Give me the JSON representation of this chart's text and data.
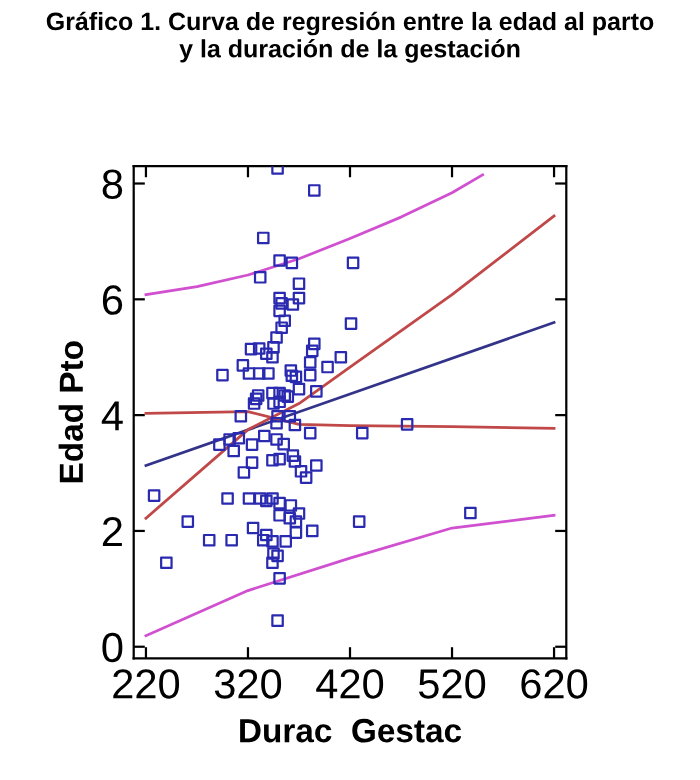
{
  "chart_data": {
    "type": "scatter",
    "title": "Gráfico 1. Curva de regresión entre la edad al parto\ny la duración de la gestación",
    "xlabel": "Durac  Gestac",
    "ylabel": "Edad Pto",
    "xlim": [
      208,
      632
    ],
    "ylim": [
      -0.2,
      8.3
    ],
    "xticks": [
      220,
      320,
      420,
      520,
      620
    ],
    "yticks": [
      0,
      2,
      4,
      6,
      8
    ],
    "grid": false,
    "legend": false,
    "series": [
      {
        "marker": "square",
        "color": "#2a2ab0",
        "x": [
          349,
          385,
          335,
          351,
          363,
          423,
          332,
          370,
          351,
          353,
          364,
          370,
          351,
          356,
          353,
          421,
          348,
          345,
          323,
          331,
          338,
          344,
          385,
          383,
          411,
          381,
          315,
          398,
          295,
          321,
          331,
          340,
          362,
          363,
          381,
          367,
          387,
          370,
          330,
          328,
          344,
          351,
          356,
          345,
          351,
          359,
          326,
          313,
          349,
          361,
          348,
          366,
          381,
          432,
          476,
          292,
          302,
          311,
          306,
          324,
          336,
          348,
          355,
          324,
          344,
          351,
          364,
          366,
          316,
          372,
          387,
          377,
          228,
          300,
          321,
          332,
          338,
          344,
          351,
          362,
          351,
          370,
          367,
          361,
          261,
          429,
          538,
          282,
          304,
          325,
          338,
          344,
          357,
          367,
          383,
          335,
          345,
          349,
          344,
          240,
          351,
          349
        ],
        "values": [
          8.26,
          7.88,
          7.06,
          6.67,
          6.63,
          6.63,
          6.38,
          6.27,
          6.02,
          5.93,
          5.91,
          6.02,
          5.8,
          5.63,
          5.51,
          5.58,
          5.34,
          5.17,
          5.14,
          5.15,
          5.06,
          5.0,
          5.23,
          5.11,
          5.0,
          4.91,
          4.86,
          4.83,
          4.69,
          4.72,
          4.72,
          4.72,
          4.77,
          4.68,
          4.69,
          4.66,
          4.41,
          4.45,
          4.34,
          4.28,
          4.38,
          4.38,
          4.34,
          4.2,
          4.23,
          4.32,
          4.2,
          3.98,
          3.98,
          3.98,
          3.86,
          3.83,
          3.69,
          3.69,
          3.84,
          3.49,
          3.58,
          3.6,
          3.38,
          3.49,
          3.64,
          3.58,
          3.5,
          3.18,
          3.22,
          3.24,
          3.3,
          3.2,
          3.01,
          3.03,
          3.13,
          2.92,
          2.61,
          2.56,
          2.56,
          2.56,
          2.52,
          2.56,
          2.48,
          2.44,
          2.27,
          2.3,
          2.16,
          2.22,
          2.16,
          2.16,
          2.31,
          1.84,
          1.84,
          2.05,
          1.93,
          1.82,
          1.82,
          1.97,
          2.0,
          1.84,
          1.61,
          1.57,
          1.45,
          1.45,
          1.18,
          0.45
        ]
      },
      {
        "type": "line",
        "color": "#33338a",
        "x": [
          220,
          620
        ],
        "values": [
          3.13,
          5.6
        ]
      },
      {
        "type": "line",
        "color": "#c04848",
        "x": [
          220,
          320,
          370,
          420,
          520,
          620
        ],
        "values": [
          2.22,
          3.75,
          4.2,
          4.83,
          6.08,
          7.44
        ]
      },
      {
        "type": "line",
        "color": "#c04848",
        "x": [
          220,
          320,
          370,
          420,
          520,
          620
        ],
        "values": [
          4.03,
          4.06,
          3.84,
          3.82,
          3.8,
          3.77
        ]
      },
      {
        "type": "line",
        "color": "#d050d0",
        "x": [
          220,
          270,
          320,
          370,
          420,
          470,
          520,
          550
        ],
        "values": [
          6.08,
          6.22,
          6.42,
          6.7,
          7.05,
          7.42,
          7.84,
          8.15
        ]
      },
      {
        "type": "line",
        "color": "#d050d0",
        "x": [
          220,
          320,
          420,
          520,
          620
        ],
        "values": [
          0.19,
          0.97,
          1.53,
          2.05,
          2.27
        ]
      }
    ]
  }
}
